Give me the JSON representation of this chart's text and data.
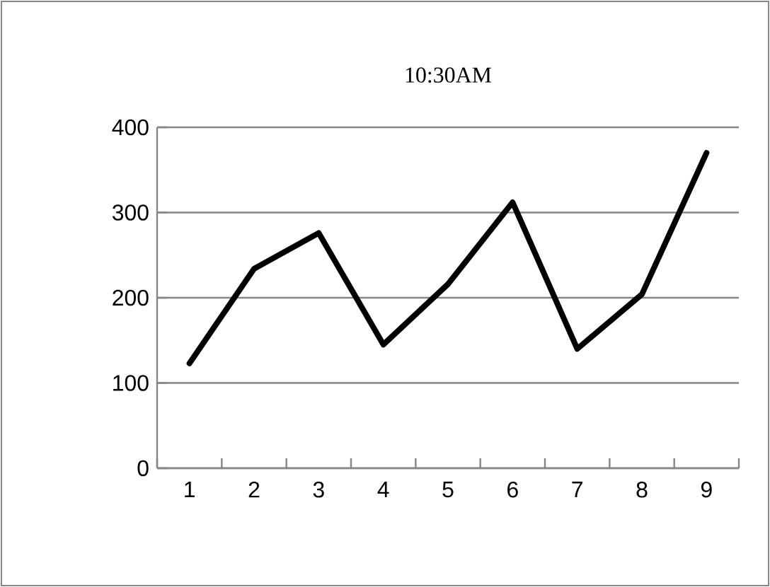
{
  "chart_data": {
    "type": "line",
    "title": "10:30AM",
    "categories": [
      "1",
      "2",
      "3",
      "4",
      "5",
      "6",
      "7",
      "8",
      "9"
    ],
    "series": [
      {
        "color": "#000000",
        "values": [
          123,
          234,
          276,
          145,
          216,
          312,
          140,
          204,
          370
        ]
      }
    ],
    "ylim": [
      0,
      400
    ],
    "yticks": [
      0,
      100,
      200,
      300,
      400
    ],
    "grid": "y",
    "marker": "none",
    "line_style": "solid"
  }
}
